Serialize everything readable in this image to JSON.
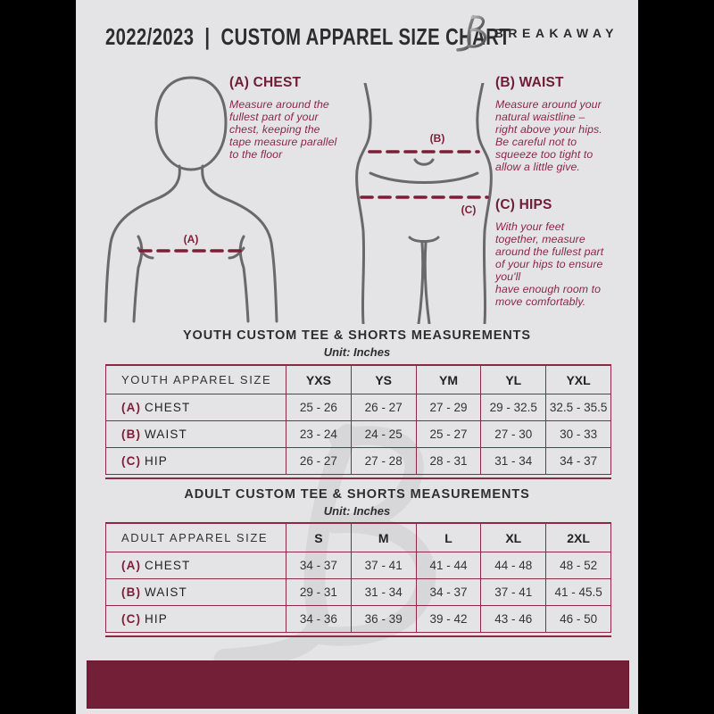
{
  "header": {
    "title": "2022/2023  |  CUSTOM APPAREL SIZE CHART",
    "brand": "BREAKAWAY"
  },
  "guide": {
    "labels": {
      "chest": "(A)",
      "waist": "(B)",
      "hips": "(C)"
    },
    "chest": {
      "heading": "(A) CHEST",
      "body": "Measure around the\nfullest part of your\nchest, keeping the\ntape measure parallel\nto the floor"
    },
    "waist": {
      "heading": "(B) WAIST",
      "body": "Measure around your\nnatural waistline –\nright above your hips.\nBe careful not to\nsqueeze too tight to\nallow a little give."
    },
    "hips": {
      "heading": "(C) HIPS",
      "body": "With your feet\ntogether, measure\naround the fullest part\nof your hips to ensure\nyou'll\nhave enough room to\nmove comfortably."
    }
  },
  "youth_table": {
    "title": "YOUTH CUSTOM TEE & SHORTS MEASUREMENTS",
    "unit": "Unit: Inches",
    "header": [
      "YOUTH APPAREL SIZE",
      "YXS",
      "YS",
      "YM",
      "YL",
      "YXL"
    ],
    "rows": [
      {
        "prefix": "(A)",
        "label": "CHEST",
        "values": [
          "25 - 26",
          "26 - 27",
          "27 - 29",
          "29 - 32.5",
          "32.5 - 35.5"
        ]
      },
      {
        "prefix": "(B)",
        "label": "WAIST",
        "values": [
          "23 - 24",
          "24 - 25",
          "25 - 27",
          "27 - 30",
          "30 - 33"
        ]
      },
      {
        "prefix": "(C)",
        "label": "HIP",
        "values": [
          "26 - 27",
          "27 - 28",
          "28 - 31",
          "31 - 34",
          "34 - 37"
        ]
      }
    ]
  },
  "adult_table": {
    "title": "ADULT CUSTOM TEE & SHORTS MEASUREMENTS",
    "unit": "Unit: Inches",
    "header": [
      "ADULT APPAREL SIZE",
      "S",
      "M",
      "L",
      "XL",
      "2XL"
    ],
    "rows": [
      {
        "prefix": "(A)",
        "label": "CHEST",
        "values": [
          "34 - 37",
          "37 - 41",
          "41 - 44",
          "44 - 48",
          "48 - 52"
        ]
      },
      {
        "prefix": "(B)",
        "label": "WAIST",
        "values": [
          "29 - 31",
          "31 - 34",
          "34 - 37",
          "37 - 41",
          "41 - 45.5"
        ]
      },
      {
        "prefix": "(C)",
        "label": "HIP",
        "values": [
          "34 - 36",
          "36 - 39",
          "39 - 42",
          "43 - 46",
          "46 - 50"
        ]
      }
    ]
  },
  "colors": {
    "accent_maroon": "#731f37",
    "table_border": "#8b2a43",
    "heading_maroon": "#6f1c34",
    "body_maroon": "#8a2746",
    "page_bg": "#e4e4e6",
    "pillar_bg": "#000000",
    "figure_stroke": "#69696c"
  }
}
